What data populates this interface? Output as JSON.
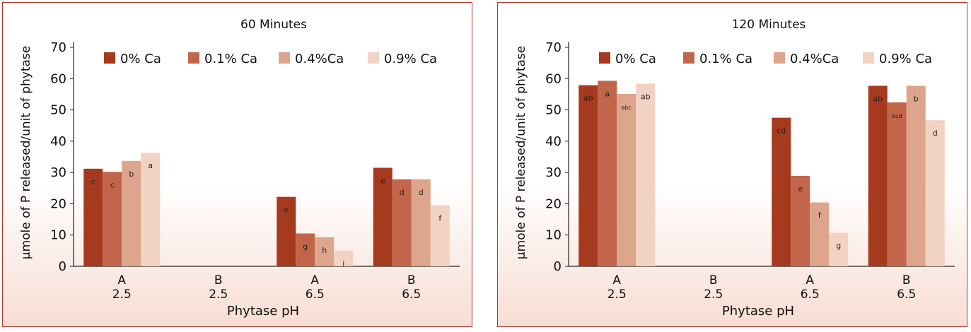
{
  "colors": {
    "background_top": "#ffffff",
    "background_bottom": "#f7ddd3",
    "border": "#b23a2c",
    "series": [
      "#a53a1f",
      "#c1664a",
      "#dca58c",
      "#f2d2c2"
    ]
  },
  "chart_data": [
    {
      "type": "bar",
      "title": "60 Minutes",
      "xlabel": "Phytase pH",
      "ylabel": "μmole of P released/unit of phytase",
      "ylim": [
        0,
        70
      ],
      "yticks": [
        "0",
        "10",
        "20",
        "30",
        "40",
        "50",
        "60",
        "70"
      ],
      "categories": [
        [
          "A",
          "2.5"
        ],
        [
          "B",
          "2.5"
        ],
        [
          "A",
          "6.5"
        ],
        [
          "B",
          "6.5"
        ]
      ],
      "legend_position": "top",
      "grid": false,
      "series": [
        {
          "name": "0% Ca",
          "values": [
            31.2,
            null,
            22.2,
            31.5
          ],
          "labels": [
            "c",
            "",
            "e",
            "e"
          ]
        },
        {
          "name": "0.1% Ca",
          "values": [
            30.2,
            null,
            10.5,
            27.8
          ],
          "labels": [
            "c",
            "",
            "g",
            "d"
          ]
        },
        {
          "name": "0.4%Ca",
          "values": [
            33.7,
            null,
            9.3,
            27.8
          ],
          "labels": [
            "b",
            "",
            "h",
            "d"
          ]
        },
        {
          "name": "0.9% Ca",
          "values": [
            36.3,
            null,
            5.0,
            19.5
          ],
          "labels": [
            "a",
            "",
            "i",
            "f"
          ]
        }
      ]
    },
    {
      "type": "bar",
      "title": "120 Minutes",
      "xlabel": "Phytase pH",
      "ylabel": "μmole of P released/unit of phytase",
      "ylim": [
        0,
        70
      ],
      "yticks": [
        "0",
        "10",
        "20",
        "30",
        "40",
        "50",
        "60",
        "70"
      ],
      "categories": [
        [
          "A",
          "2.5"
        ],
        [
          "B",
          "2.5"
        ],
        [
          "A",
          "6.5"
        ],
        [
          "B",
          "6.5"
        ]
      ],
      "legend_position": "top",
      "grid": false,
      "series": [
        {
          "name": "0% Ca",
          "values": [
            57.9,
            null,
            47.5,
            57.7
          ],
          "labels": [
            "ab",
            "",
            "cd",
            "ab"
          ]
        },
        {
          "name": "0.1% Ca",
          "values": [
            59.3,
            null,
            28.9,
            52.4
          ],
          "labels": [
            "a",
            "",
            "e",
            "bcd"
          ]
        },
        {
          "name": "0.4%Ca",
          "values": [
            55.1,
            null,
            20.4,
            57.7
          ],
          "labels": [
            "abc",
            "",
            "f",
            "b"
          ]
        },
        {
          "name": "0.9% Ca",
          "values": [
            58.4,
            null,
            10.7,
            46.7
          ],
          "labels": [
            "ab",
            "",
            "g",
            "d"
          ]
        }
      ]
    }
  ]
}
